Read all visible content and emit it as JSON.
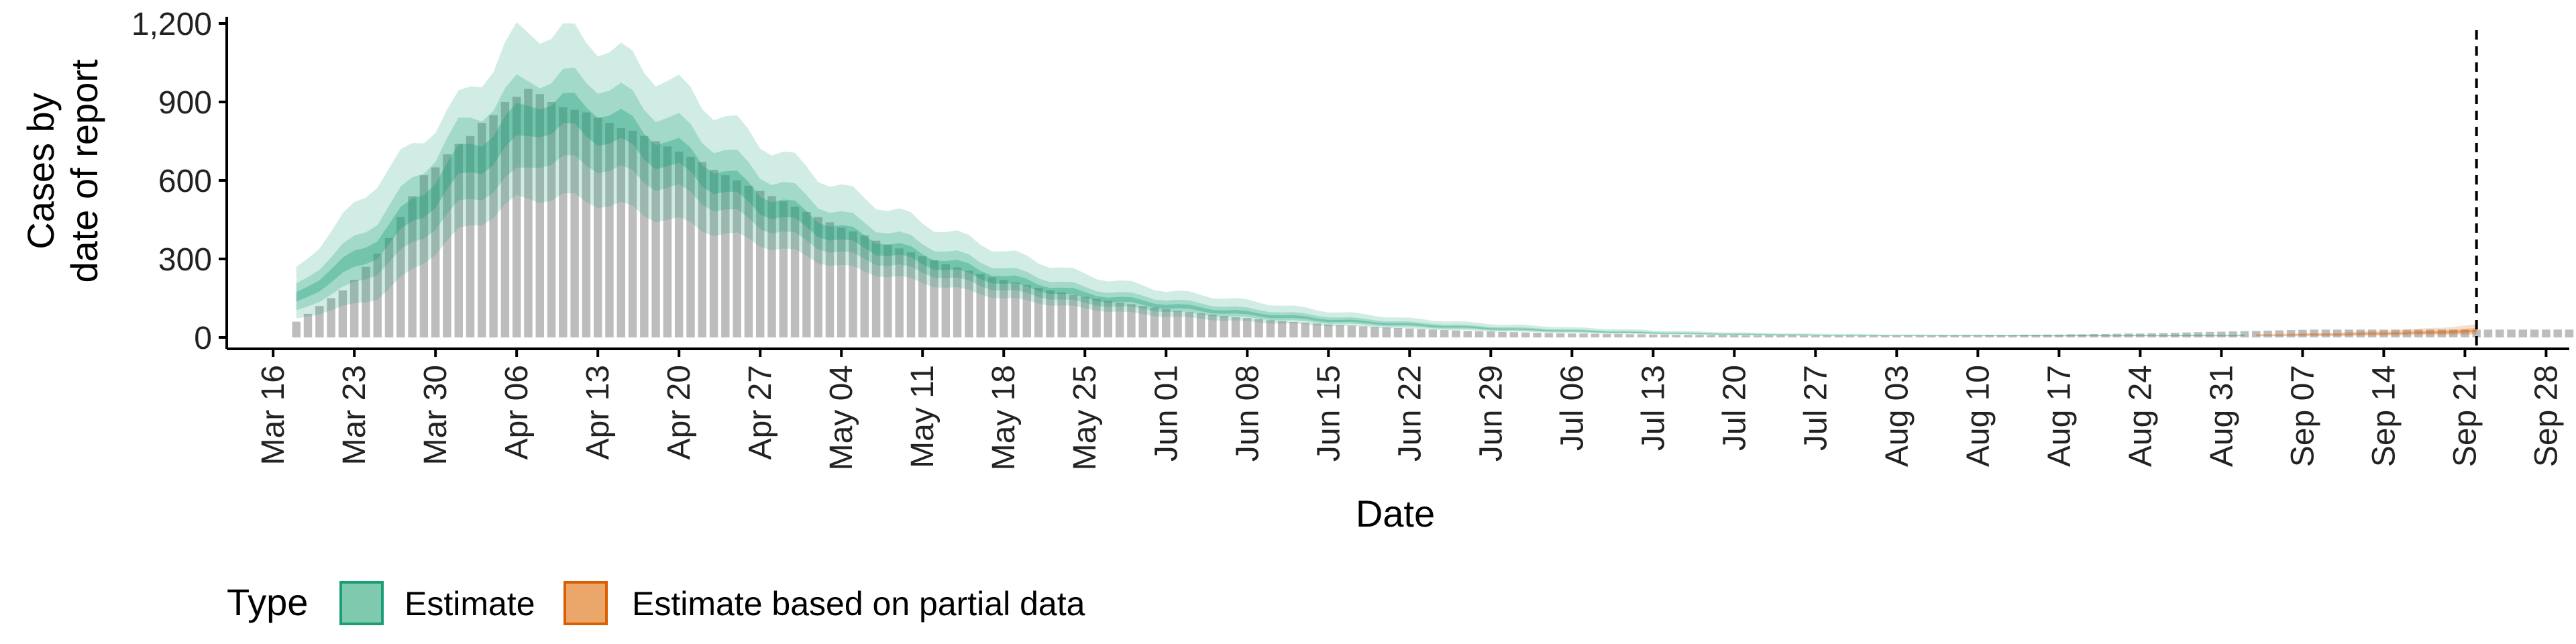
{
  "chart_data": {
    "type": "area",
    "xlabel": "Date",
    "ylabel_lines": [
      "Cases by",
      "date of report"
    ],
    "y_ticks": [
      0,
      300,
      600,
      900,
      1200
    ],
    "y_tick_labels": [
      "0",
      "300",
      "600",
      "900",
      "1,200"
    ],
    "ylim": [
      0,
      1200
    ],
    "x_domain": [
      "2020-03-12",
      "2020-09-30"
    ],
    "x_ticks": [
      "2020-03-16",
      "2020-03-23",
      "2020-03-30",
      "2020-04-06",
      "2020-04-13",
      "2020-04-20",
      "2020-04-27",
      "2020-05-04",
      "2020-05-11",
      "2020-05-18",
      "2020-05-25",
      "2020-06-01",
      "2020-06-08",
      "2020-06-15",
      "2020-06-22",
      "2020-06-29",
      "2020-07-06",
      "2020-07-13",
      "2020-07-20",
      "2020-07-27",
      "2020-08-03",
      "2020-08-10",
      "2020-08-17",
      "2020-08-24",
      "2020-08-31",
      "2020-09-07",
      "2020-09-14",
      "2020-09-21",
      "2020-09-28"
    ],
    "x_tick_labels": [
      "Mar 16",
      "Mar 23",
      "Mar 30",
      "Apr 06",
      "Apr 13",
      "Apr 20",
      "Apr 27",
      "May 04",
      "May 11",
      "May 18",
      "May 25",
      "Jun 01",
      "Jun 08",
      "Jun 15",
      "Jun 22",
      "Jun 29",
      "Jul 06",
      "Jul 13",
      "Jul 20",
      "Jul 27",
      "Aug 03",
      "Aug 10",
      "Aug 17",
      "Aug 24",
      "Aug 31",
      "Sep 07",
      "Sep 14",
      "Sep 21",
      "Sep 28"
    ],
    "forecast_line_date": "2020-09-22",
    "observed_bars": {
      "start_date": "2020-03-18",
      "end_date": "2020-09-22",
      "values": [
        60,
        90,
        120,
        150,
        180,
        220,
        270,
        320,
        380,
        460,
        540,
        620,
        650,
        700,
        740,
        770,
        820,
        850,
        900,
        920,
        950,
        930,
        900,
        880,
        870,
        860,
        840,
        820,
        800,
        790,
        770,
        750,
        730,
        710,
        690,
        670,
        640,
        620,
        600,
        580,
        560,
        540,
        520,
        500,
        480,
        460,
        440,
        420,
        405,
        390,
        370,
        355,
        340,
        325,
        310,
        295,
        280,
        268,
        255,
        243,
        230,
        220,
        210,
        200,
        190,
        180,
        172,
        163,
        155,
        147,
        140,
        133,
        127,
        120,
        114,
        108,
        102,
        97,
        92,
        87,
        82,
        78,
        74,
        70,
        66,
        63,
        59,
        56,
        53,
        50,
        47,
        45,
        42,
        40,
        38,
        36,
        34,
        32,
        30,
        28,
        27,
        25,
        24,
        23,
        21,
        20,
        19,
        18,
        17,
        16,
        15,
        15,
        14,
        13,
        13,
        12,
        12,
        11,
        11,
        10,
        10,
        10,
        9,
        9,
        9,
        8,
        8,
        8,
        8,
        8,
        7,
        7,
        7,
        7,
        7,
        7,
        7,
        7,
        7,
        7,
        7,
        7,
        8,
        8,
        8,
        8,
        9,
        9,
        9,
        10,
        10,
        11,
        11,
        12,
        12,
        13,
        13,
        14,
        15,
        15,
        16,
        17,
        18,
        19,
        20,
        21,
        22,
        23,
        24,
        25,
        26,
        27,
        28,
        29,
        30,
        30,
        30,
        30,
        30,
        30,
        30,
        30,
        30,
        30,
        30,
        30,
        30,
        30,
        30,
        30,
        30,
        30,
        30,
        30,
        30,
        30,
        30
      ]
    },
    "series": [
      {
        "name": "Estimate",
        "color": "#1b9e77",
        "start_date": "2020-03-18",
        "end_date": "2020-09-02",
        "knots": [
          [
            "2020-03-18",
            150,
            100,
            200,
            70,
            260
          ],
          [
            "2020-03-25",
            350,
            250,
            450,
            150,
            600
          ],
          [
            "2020-04-01",
            650,
            500,
            800,
            400,
            900
          ],
          [
            "2020-04-06",
            800,
            620,
            960,
            520,
            1150
          ],
          [
            "2020-04-08",
            870,
            680,
            1000,
            540,
            1180
          ],
          [
            "2020-04-13",
            830,
            660,
            980,
            520,
            1130
          ],
          [
            "2020-04-20",
            680,
            560,
            820,
            440,
            960
          ],
          [
            "2020-04-27",
            520,
            430,
            630,
            360,
            750
          ],
          [
            "2020-05-04",
            390,
            320,
            470,
            270,
            570
          ],
          [
            "2020-05-11",
            300,
            250,
            360,
            210,
            440
          ],
          [
            "2020-05-18",
            220,
            180,
            265,
            150,
            330
          ],
          [
            "2020-05-25",
            160,
            130,
            190,
            110,
            240
          ],
          [
            "2020-06-01",
            120,
            100,
            145,
            80,
            180
          ],
          [
            "2020-06-08",
            90,
            75,
            110,
            60,
            140
          ],
          [
            "2020-06-15",
            65,
            55,
            80,
            45,
            100
          ],
          [
            "2020-06-22",
            48,
            40,
            58,
            33,
            72
          ],
          [
            "2020-06-29",
            34,
            28,
            41,
            24,
            52
          ],
          [
            "2020-07-06",
            24,
            20,
            30,
            17,
            38
          ],
          [
            "2020-07-13",
            17,
            14,
            21,
            12,
            27
          ],
          [
            "2020-07-20",
            12,
            10,
            15,
            8,
            19
          ],
          [
            "2020-07-27",
            9,
            7,
            11,
            6,
            14
          ],
          [
            "2020-08-03",
            7,
            6,
            9,
            5,
            11
          ],
          [
            "2020-08-17",
            6,
            5,
            8,
            4,
            10
          ],
          [
            "2020-09-02",
            7,
            5,
            9,
            4,
            11
          ]
        ]
      },
      {
        "name": "Estimate based on partial data",
        "color": "#d95f02",
        "start_date": "2020-09-03",
        "end_date": "2020-09-22",
        "knots": [
          [
            "2020-09-03",
            8,
            6,
            10,
            4,
            13
          ],
          [
            "2020-09-10",
            11,
            8,
            15,
            5,
            19
          ],
          [
            "2020-09-17",
            17,
            12,
            24,
            8,
            32
          ],
          [
            "2020-09-22",
            24,
            15,
            35,
            10,
            48
          ]
        ]
      }
    ],
    "legend": {
      "title": "Type",
      "position": "bottom-left",
      "entries": [
        {
          "label": "Estimate",
          "fill": "#7fc9ae",
          "stroke": "#1b9e77"
        },
        {
          "label": "Estimate based on partial data",
          "fill": "#eba66a",
          "stroke": "#d95f02"
        }
      ]
    },
    "colors": {
      "bars": "#bdbdbd",
      "axis": "#000000"
    }
  }
}
